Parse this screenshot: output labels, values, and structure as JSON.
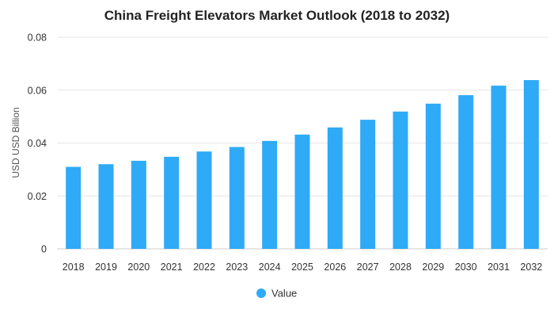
{
  "chart_data": {
    "type": "bar",
    "title": "China Freight Elevators Market Outlook (2018 to 2032)",
    "xlabel": "",
    "ylabel": "USD USD Billion",
    "categories": [
      "2018",
      "2019",
      "2020",
      "2021",
      "2022",
      "2023",
      "2024",
      "2025",
      "2026",
      "2027",
      "2028",
      "2029",
      "2030",
      "2031",
      "2032"
    ],
    "series": [
      {
        "name": "Value",
        "values": [
          0.031,
          0.032,
          0.0333,
          0.0348,
          0.0368,
          0.0385,
          0.0408,
          0.0432,
          0.0459,
          0.0488,
          0.0519,
          0.0549,
          0.0581,
          0.0617,
          0.0638
        ]
      }
    ],
    "ylim": [
      0,
      0.08
    ],
    "yticks": [
      "0",
      "0.02",
      "0.04",
      "0.06",
      "0.08"
    ],
    "ytick_values": [
      0,
      0.02,
      0.04,
      0.06,
      0.08
    ],
    "grid": true,
    "legend": "bottom-center",
    "colors": {
      "bar": "#2eaaf7",
      "grid": "#e6e6e6"
    }
  }
}
